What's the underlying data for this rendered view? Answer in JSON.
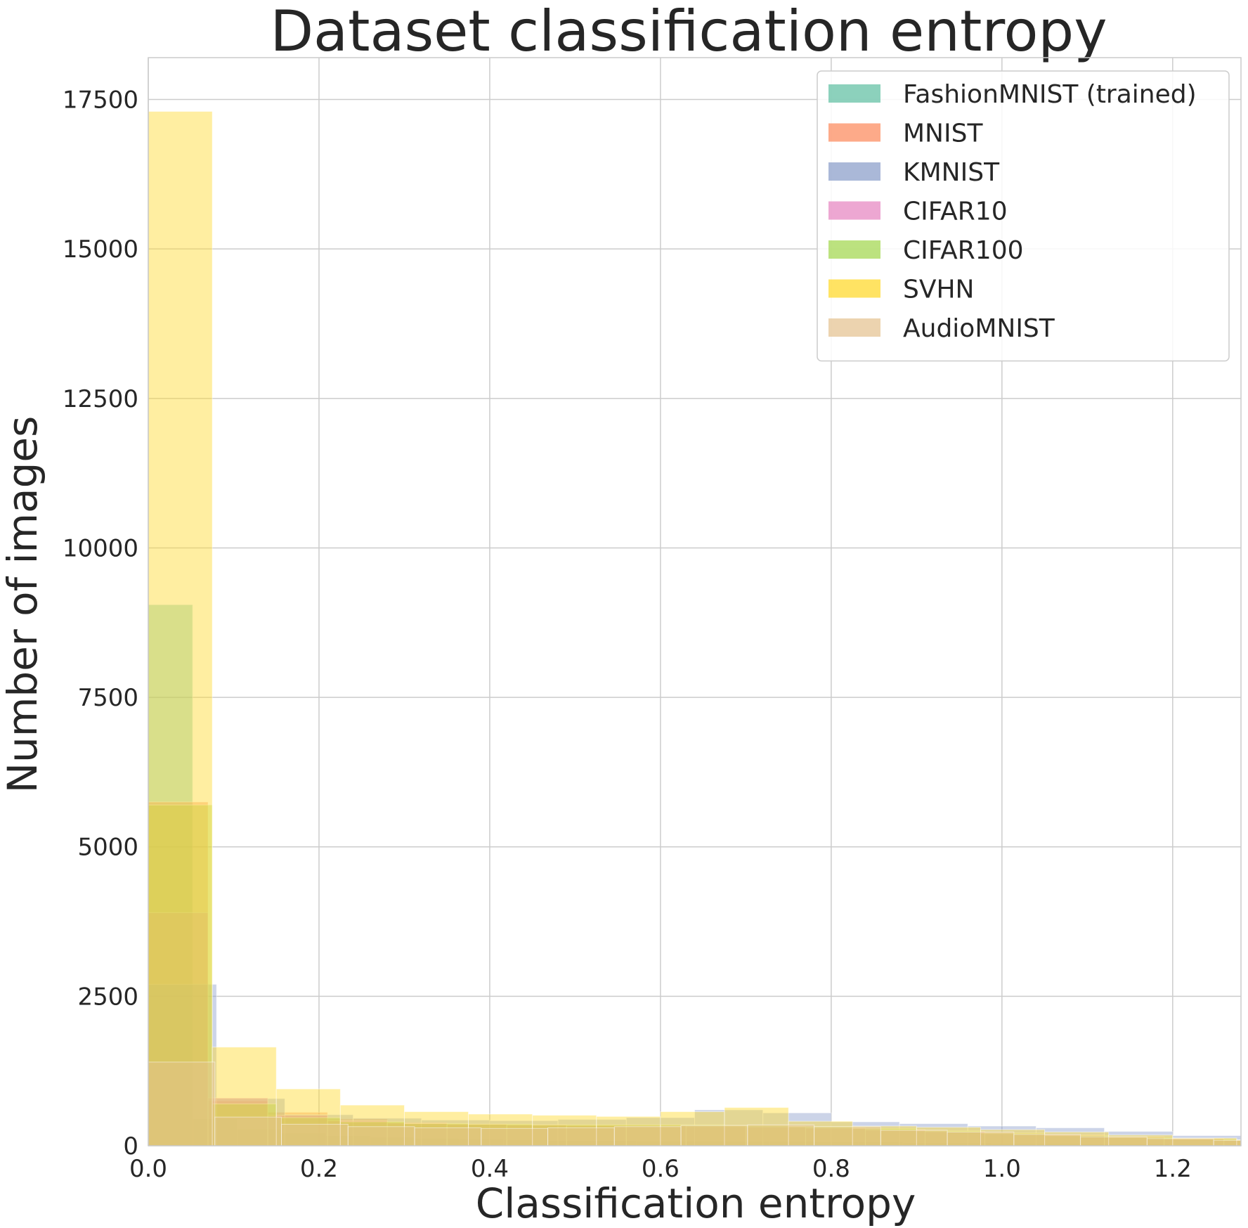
{
  "chart_data": {
    "type": "bar",
    "title": "Dataset classification entropy",
    "xlabel": "Classification entropy",
    "ylabel": "Number of images",
    "xlim": [
      0.0,
      1.28
    ],
    "ylim": [
      0,
      18200
    ],
    "xticks": [
      0.0,
      0.2,
      0.4,
      0.6,
      0.8,
      1.0,
      1.2
    ],
    "xtick_labels": [
      "0.0",
      "0.2",
      "0.4",
      "0.6",
      "0.8",
      "1.0",
      "1.2"
    ],
    "yticks": [
      0,
      2500,
      5000,
      7500,
      10000,
      12500,
      15000,
      17500
    ],
    "ytick_labels": [
      "0",
      "2500",
      "5000",
      "7500",
      "10000",
      "12500",
      "15000",
      "17500"
    ],
    "grid": true,
    "legend_position": "top-right",
    "series": [
      {
        "name": "FashionMNIST (trained)",
        "color": "#66c2a5",
        "bins": [
          {
            "x0": 0.0,
            "x1": 0.052,
            "y": 9050
          },
          {
            "x0": 0.052,
            "x1": 0.104,
            "y": 450
          },
          {
            "x0": 0.104,
            "x1": 0.156,
            "y": 280
          },
          {
            "x0": 0.156,
            "x1": 0.208,
            "y": 210
          },
          {
            "x0": 0.208,
            "x1": 0.26,
            "y": 170
          },
          {
            "x0": 0.26,
            "x1": 0.312,
            "y": 140
          },
          {
            "x0": 0.312,
            "x1": 0.364,
            "y": 120
          },
          {
            "x0": 0.364,
            "x1": 0.416,
            "y": 110
          },
          {
            "x0": 0.416,
            "x1": 0.468,
            "y": 100
          },
          {
            "x0": 0.468,
            "x1": 0.52,
            "y": 90
          },
          {
            "x0": 0.52,
            "x1": 0.572,
            "y": 90
          },
          {
            "x0": 0.572,
            "x1": 0.624,
            "y": 80
          },
          {
            "x0": 0.624,
            "x1": 0.676,
            "y": 80
          },
          {
            "x0": 0.676,
            "x1": 0.728,
            "y": 70
          },
          {
            "x0": 0.728,
            "x1": 0.78,
            "y": 70
          },
          {
            "x0": 0.78,
            "x1": 0.832,
            "y": 60
          },
          {
            "x0": 0.832,
            "x1": 0.884,
            "y": 60
          },
          {
            "x0": 0.884,
            "x1": 0.936,
            "y": 50
          },
          {
            "x0": 0.936,
            "x1": 0.988,
            "y": 50
          },
          {
            "x0": 0.988,
            "x1": 1.04,
            "y": 40
          },
          {
            "x0": 1.04,
            "x1": 1.092,
            "y": 40
          },
          {
            "x0": 1.092,
            "x1": 1.144,
            "y": 30
          },
          {
            "x0": 1.144,
            "x1": 1.196,
            "y": 30
          },
          {
            "x0": 1.196,
            "x1": 1.248,
            "y": 20
          },
          {
            "x0": 1.248,
            "x1": 1.3,
            "y": 20
          }
        ]
      },
      {
        "name": "MNIST",
        "color": "#fc8d62",
        "bins": [
          {
            "x0": 0.0,
            "x1": 0.07,
            "y": 5750
          },
          {
            "x0": 0.07,
            "x1": 0.14,
            "y": 750
          },
          {
            "x0": 0.14,
            "x1": 0.21,
            "y": 560
          },
          {
            "x0": 0.21,
            "x1": 0.28,
            "y": 450
          },
          {
            "x0": 0.28,
            "x1": 0.35,
            "y": 390
          },
          {
            "x0": 0.35,
            "x1": 0.42,
            "y": 360
          },
          {
            "x0": 0.42,
            "x1": 0.49,
            "y": 340
          },
          {
            "x0": 0.49,
            "x1": 0.56,
            "y": 330
          },
          {
            "x0": 0.56,
            "x1": 0.63,
            "y": 320
          },
          {
            "x0": 0.63,
            "x1": 0.7,
            "y": 310
          },
          {
            "x0": 0.7,
            "x1": 0.77,
            "y": 300
          },
          {
            "x0": 0.77,
            "x1": 0.84,
            "y": 280
          },
          {
            "x0": 0.84,
            "x1": 0.91,
            "y": 250
          },
          {
            "x0": 0.91,
            "x1": 0.98,
            "y": 220
          },
          {
            "x0": 0.98,
            "x1": 1.05,
            "y": 190
          },
          {
            "x0": 1.05,
            "x1": 1.12,
            "y": 160
          },
          {
            "x0": 1.12,
            "x1": 1.19,
            "y": 130
          },
          {
            "x0": 1.19,
            "x1": 1.26,
            "y": 110
          },
          {
            "x0": 1.26,
            "x1": 1.33,
            "y": 90
          }
        ]
      },
      {
        "name": "KMNIST",
        "color": "#8da0cb",
        "bins": [
          {
            "x0": 0.0,
            "x1": 0.08,
            "y": 2700
          },
          {
            "x0": 0.08,
            "x1": 0.16,
            "y": 790
          },
          {
            "x0": 0.16,
            "x1": 0.24,
            "y": 520
          },
          {
            "x0": 0.24,
            "x1": 0.32,
            "y": 460
          },
          {
            "x0": 0.32,
            "x1": 0.4,
            "y": 430
          },
          {
            "x0": 0.4,
            "x1": 0.48,
            "y": 420
          },
          {
            "x0": 0.48,
            "x1": 0.56,
            "y": 440
          },
          {
            "x0": 0.56,
            "x1": 0.64,
            "y": 470
          },
          {
            "x0": 0.64,
            "x1": 0.72,
            "y": 600
          },
          {
            "x0": 0.72,
            "x1": 0.8,
            "y": 550
          },
          {
            "x0": 0.8,
            "x1": 0.88,
            "y": 400
          },
          {
            "x0": 0.88,
            "x1": 0.96,
            "y": 370
          },
          {
            "x0": 0.96,
            "x1": 1.04,
            "y": 330
          },
          {
            "x0": 1.04,
            "x1": 1.12,
            "y": 300
          },
          {
            "x0": 1.12,
            "x1": 1.2,
            "y": 240
          },
          {
            "x0": 1.2,
            "x1": 1.28,
            "y": 170
          }
        ]
      },
      {
        "name": "CIFAR10",
        "color": "#e78ac3",
        "bins": [
          {
            "x0": 0.0,
            "x1": 0.07,
            "y": 3900
          },
          {
            "x0": 0.07,
            "x1": 0.14,
            "y": 800
          },
          {
            "x0": 0.14,
            "x1": 0.21,
            "y": 510
          },
          {
            "x0": 0.21,
            "x1": 0.28,
            "y": 420
          },
          {
            "x0": 0.28,
            "x1": 0.35,
            "y": 380
          },
          {
            "x0": 0.35,
            "x1": 0.42,
            "y": 360
          },
          {
            "x0": 0.42,
            "x1": 0.49,
            "y": 350
          },
          {
            "x0": 0.49,
            "x1": 0.56,
            "y": 340
          },
          {
            "x0": 0.56,
            "x1": 0.63,
            "y": 340
          },
          {
            "x0": 0.63,
            "x1": 0.7,
            "y": 330
          },
          {
            "x0": 0.7,
            "x1": 0.77,
            "y": 320
          },
          {
            "x0": 0.77,
            "x1": 0.84,
            "y": 300
          },
          {
            "x0": 0.84,
            "x1": 0.91,
            "y": 270
          },
          {
            "x0": 0.91,
            "x1": 0.98,
            "y": 240
          },
          {
            "x0": 0.98,
            "x1": 1.05,
            "y": 210
          },
          {
            "x0": 1.05,
            "x1": 1.12,
            "y": 180
          },
          {
            "x0": 1.12,
            "x1": 1.19,
            "y": 150
          },
          {
            "x0": 1.19,
            "x1": 1.26,
            "y": 120
          },
          {
            "x0": 1.26,
            "x1": 1.33,
            "y": 100
          }
        ]
      },
      {
        "name": "CIFAR100",
        "color": "#a6d854",
        "bins": [
          {
            "x0": 0.0,
            "x1": 0.075,
            "y": 5700
          },
          {
            "x0": 0.075,
            "x1": 0.15,
            "y": 700
          },
          {
            "x0": 0.15,
            "x1": 0.225,
            "y": 470
          },
          {
            "x0": 0.225,
            "x1": 0.3,
            "y": 400
          },
          {
            "x0": 0.3,
            "x1": 0.375,
            "y": 370
          },
          {
            "x0": 0.375,
            "x1": 0.45,
            "y": 360
          },
          {
            "x0": 0.45,
            "x1": 0.525,
            "y": 350
          },
          {
            "x0": 0.525,
            "x1": 0.6,
            "y": 350
          },
          {
            "x0": 0.6,
            "x1": 0.675,
            "y": 350
          },
          {
            "x0": 0.675,
            "x1": 0.75,
            "y": 340
          },
          {
            "x0": 0.75,
            "x1": 0.825,
            "y": 320
          },
          {
            "x0": 0.825,
            "x1": 0.9,
            "y": 290
          },
          {
            "x0": 0.9,
            "x1": 0.975,
            "y": 250
          },
          {
            "x0": 0.975,
            "x1": 1.05,
            "y": 210
          },
          {
            "x0": 1.05,
            "x1": 1.125,
            "y": 170
          },
          {
            "x0": 1.125,
            "x1": 1.2,
            "y": 140
          },
          {
            "x0": 1.2,
            "x1": 1.275,
            "y": 110
          },
          {
            "x0": 1.275,
            "x1": 1.35,
            "y": 90
          }
        ]
      },
      {
        "name": "SVHN",
        "color": "#ffd92f",
        "bins": [
          {
            "x0": 0.0,
            "x1": 0.075,
            "y": 17300
          },
          {
            "x0": 0.075,
            "x1": 0.15,
            "y": 1650
          },
          {
            "x0": 0.15,
            "x1": 0.225,
            "y": 950
          },
          {
            "x0": 0.225,
            "x1": 0.3,
            "y": 680
          },
          {
            "x0": 0.3,
            "x1": 0.375,
            "y": 570
          },
          {
            "x0": 0.375,
            "x1": 0.45,
            "y": 530
          },
          {
            "x0": 0.45,
            "x1": 0.525,
            "y": 510
          },
          {
            "x0": 0.525,
            "x1": 0.6,
            "y": 490
          },
          {
            "x0": 0.6,
            "x1": 0.675,
            "y": 570
          },
          {
            "x0": 0.675,
            "x1": 0.75,
            "y": 640
          },
          {
            "x0": 0.75,
            "x1": 0.825,
            "y": 410
          },
          {
            "x0": 0.825,
            "x1": 0.9,
            "y": 330
          },
          {
            "x0": 0.9,
            "x1": 0.975,
            "y": 310
          },
          {
            "x0": 0.975,
            "x1": 1.05,
            "y": 270
          },
          {
            "x0": 1.05,
            "x1": 1.125,
            "y": 230
          },
          {
            "x0": 1.125,
            "x1": 1.2,
            "y": 180
          },
          {
            "x0": 1.2,
            "x1": 1.275,
            "y": 130
          },
          {
            "x0": 1.275,
            "x1": 1.35,
            "y": 100
          }
        ]
      },
      {
        "name": "AudioMNIST",
        "color": "#e5c494",
        "bins": [
          {
            "x0": 0.0,
            "x1": 0.078,
            "y": 1400
          },
          {
            "x0": 0.078,
            "x1": 0.156,
            "y": 480
          },
          {
            "x0": 0.156,
            "x1": 0.234,
            "y": 360
          },
          {
            "x0": 0.234,
            "x1": 0.312,
            "y": 320
          },
          {
            "x0": 0.312,
            "x1": 0.39,
            "y": 300
          },
          {
            "x0": 0.39,
            "x1": 0.468,
            "y": 290
          },
          {
            "x0": 0.468,
            "x1": 0.546,
            "y": 300
          },
          {
            "x0": 0.546,
            "x1": 0.624,
            "y": 320
          },
          {
            "x0": 0.624,
            "x1": 0.702,
            "y": 340
          },
          {
            "x0": 0.702,
            "x1": 0.78,
            "y": 350
          },
          {
            "x0": 0.78,
            "x1": 0.858,
            "y": 320
          },
          {
            "x0": 0.858,
            "x1": 0.936,
            "y": 260
          },
          {
            "x0": 0.936,
            "x1": 1.014,
            "y": 230
          },
          {
            "x0": 1.014,
            "x1": 1.092,
            "y": 190
          },
          {
            "x0": 1.092,
            "x1": 1.17,
            "y": 150
          },
          {
            "x0": 1.17,
            "x1": 1.248,
            "y": 120
          },
          {
            "x0": 1.248,
            "x1": 1.326,
            "y": 90
          }
        ]
      }
    ]
  }
}
